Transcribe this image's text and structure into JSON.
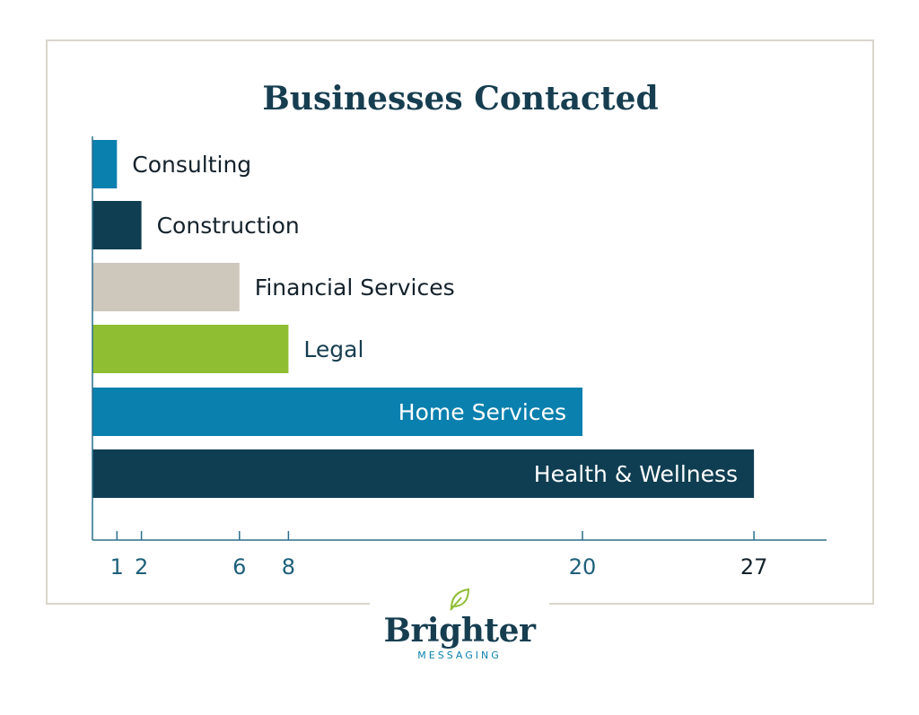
{
  "chart_data": {
    "type": "bar",
    "orientation": "horizontal",
    "title": "Businesses Contacted",
    "categories": [
      "Consulting",
      "Construction",
      "Financial Services",
      "Legal",
      "Home Services",
      "Health & Wellness"
    ],
    "values": [
      1,
      2,
      6,
      8,
      20,
      27
    ],
    "colors": [
      "#0a80ae",
      "#0f3e52",
      "#cdc8bb",
      "#8fbe32",
      "#0a80ae",
      "#0f3e52"
    ],
    "label_colors": [
      "#14222b",
      "#14222b",
      "#14222b",
      "#163e50",
      "#ffffff",
      "#ffffff"
    ],
    "label_placement": [
      "outside",
      "outside",
      "outside",
      "outside",
      "inside",
      "inside"
    ],
    "xticks": [
      1,
      2,
      6,
      8,
      20,
      27
    ],
    "xlim": [
      0,
      30
    ],
    "xlabel": "",
    "ylabel": "",
    "grid": false,
    "legend": "none"
  },
  "logo": {
    "name": "Brighter",
    "subtitle": "MESSAGING",
    "icon": "leaf-icon"
  },
  "colors": {
    "title": "#163e50",
    "axis": "#2b6e8c",
    "tick_text": "#1d5f7a",
    "tick_text_last": "#14222b",
    "border": "#d9d6ca",
    "brand_green": "#8fbe32"
  }
}
